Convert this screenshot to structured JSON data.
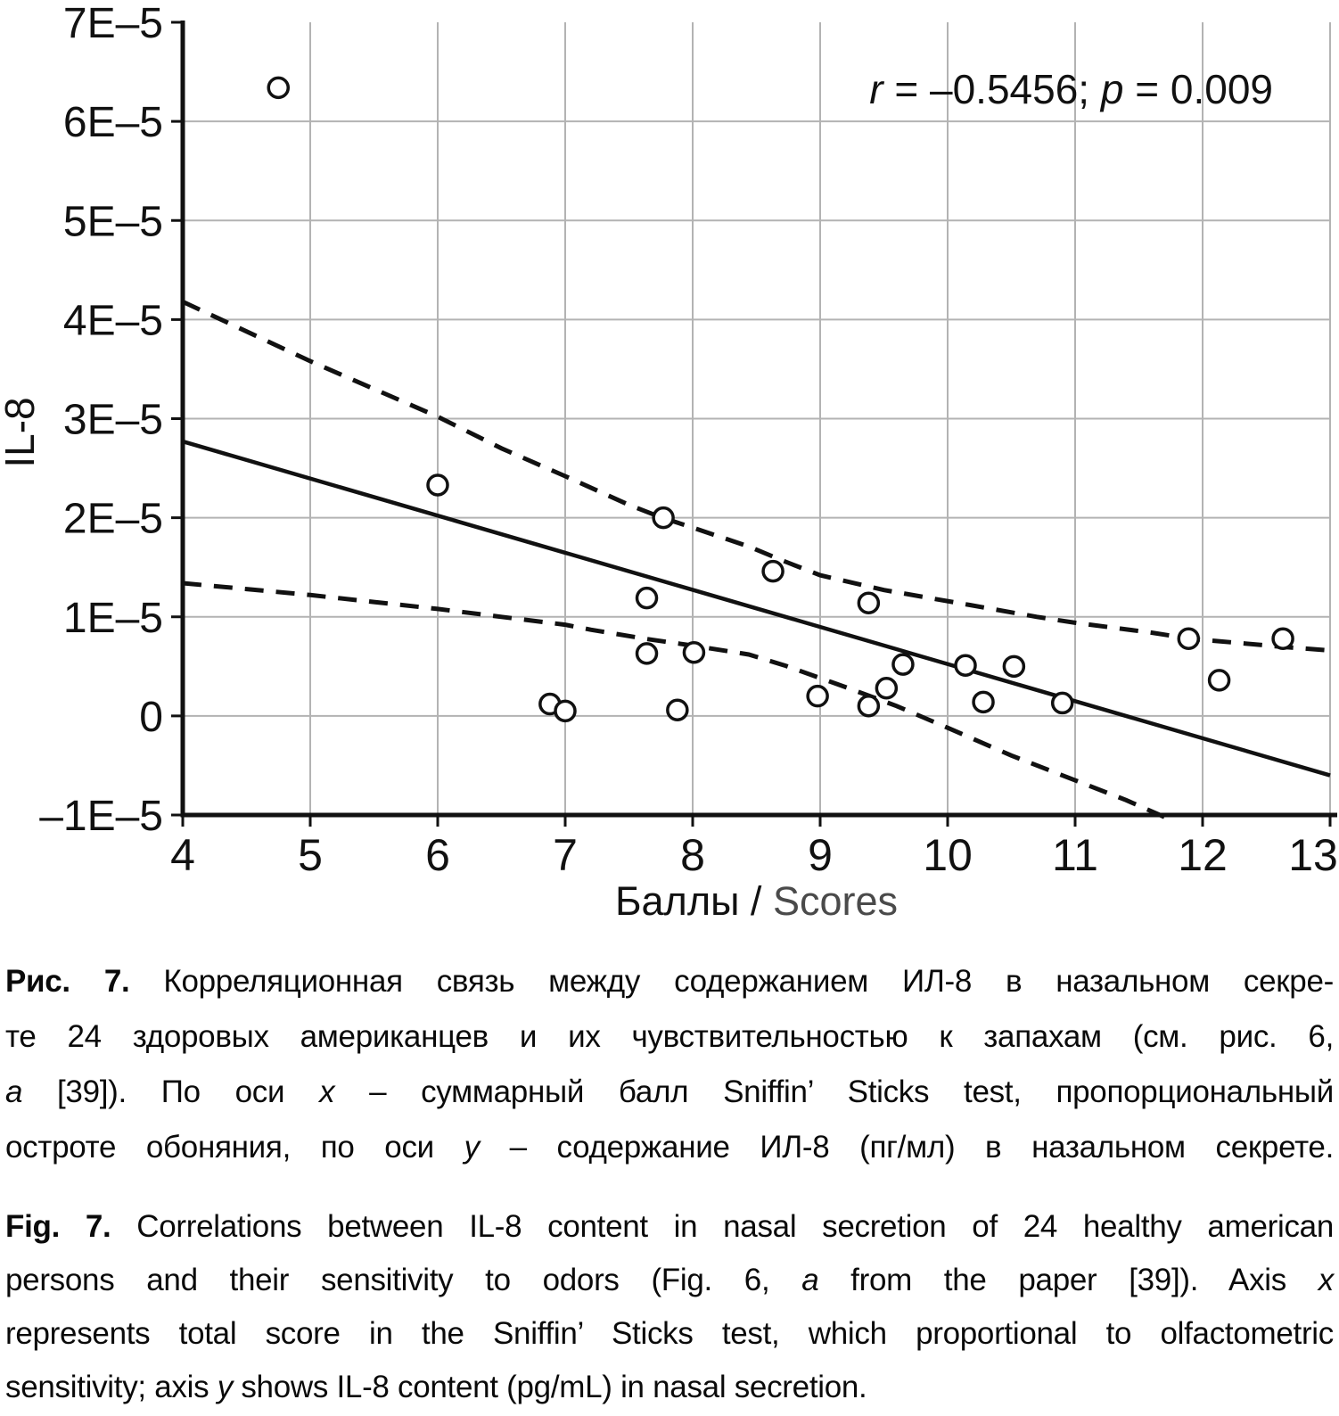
{
  "chart_data": {
    "type": "scatter",
    "title": "",
    "xlabel_segments": [
      {
        "t": "Баллы / ",
        "color": "#111111"
      },
      {
        "t": "Scores",
        "color": "#4a4a4a"
      }
    ],
    "ylabel": "IL-8",
    "xlim": [
      4,
      13
    ],
    "ylim_e5": [
      -1,
      7
    ],
    "x_ticks": [
      4,
      5,
      6,
      7,
      8,
      9,
      10,
      11,
      12,
      13
    ],
    "y_ticks": [
      {
        "value": 7,
        "label": "7E–5"
      },
      {
        "value": 6,
        "label": "6E–5"
      },
      {
        "value": 5,
        "label": "5E–5"
      },
      {
        "value": 4,
        "label": "4E–5"
      },
      {
        "value": 3,
        "label": "3E–5"
      },
      {
        "value": 2,
        "label": "2E–5"
      },
      {
        "value": 1,
        "label": "1E–5"
      },
      {
        "value": 0,
        "label": "0"
      },
      {
        "value": -1,
        "label": "–1E–5"
      }
    ],
    "grid": true,
    "legend": "none",
    "annotation": "r = –0.5456; p = 0.009",
    "annotation_segments": [
      {
        "t": "r",
        "i": true
      },
      {
        "t": " = –0.5456; "
      },
      {
        "t": "p",
        "i": true
      },
      {
        "t": " = 0.009"
      }
    ],
    "correlation_r": -0.5456,
    "p_value": 0.009,
    "points_x_score_y_il8_e5": [
      [
        4.75,
        6.34
      ],
      [
        6.0,
        2.33
      ],
      [
        6.88,
        0.12
      ],
      [
        7.0,
        0.05
      ],
      [
        7.64,
        1.19
      ],
      [
        7.64,
        0.63
      ],
      [
        7.77,
        2.0
      ],
      [
        7.88,
        0.06
      ],
      [
        8.01,
        0.64
      ],
      [
        8.63,
        1.46
      ],
      [
        8.98,
        0.2
      ],
      [
        9.38,
        1.14
      ],
      [
        9.38,
        0.1
      ],
      [
        9.52,
        0.28
      ],
      [
        9.65,
        0.52
      ],
      [
        10.14,
        0.51
      ],
      [
        10.28,
        0.14
      ],
      [
        10.52,
        0.5
      ],
      [
        10.9,
        0.13
      ],
      [
        11.89,
        0.78
      ],
      [
        12.13,
        0.36
      ],
      [
        12.63,
        0.78
      ]
    ],
    "regression_line_e5": [
      [
        4,
        2.77
      ],
      [
        13,
        -0.6
      ]
    ],
    "confidence_band_upper_e5": [
      [
        4,
        4.18
      ],
      [
        4.5,
        3.88
      ],
      [
        5,
        3.58
      ],
      [
        5.5,
        3.3
      ],
      [
        6,
        3.02
      ],
      [
        6.5,
        2.7
      ],
      [
        7,
        2.42
      ],
      [
        7.5,
        2.13
      ],
      [
        7.76,
        2.0
      ],
      [
        8,
        1.9
      ],
      [
        8.44,
        1.71
      ],
      [
        8.72,
        1.56
      ],
      [
        9,
        1.42
      ],
      [
        9.5,
        1.27
      ],
      [
        10.17,
        1.12
      ],
      [
        10.7,
        1.0
      ],
      [
        11,
        0.94
      ],
      [
        11.6,
        0.84
      ],
      [
        11.9,
        0.78
      ],
      [
        12.6,
        0.7
      ],
      [
        13,
        0.66
      ]
    ],
    "confidence_band_lower_e5": [
      [
        4,
        1.34
      ],
      [
        4.5,
        1.28
      ],
      [
        5,
        1.22
      ],
      [
        5.5,
        1.15
      ],
      [
        6,
        1.08
      ],
      [
        6.5,
        1.0
      ],
      [
        7,
        0.92
      ],
      [
        7.2,
        0.87
      ],
      [
        7.62,
        0.78
      ],
      [
        8,
        0.71
      ],
      [
        8.44,
        0.62
      ],
      [
        8.72,
        0.51
      ],
      [
        9.2,
        0.29
      ],
      [
        9.6,
        0.1
      ],
      [
        10,
        -0.12
      ],
      [
        10.5,
        -0.4
      ],
      [
        11,
        -0.65
      ],
      [
        11.4,
        -0.85
      ],
      [
        11.7,
        -1.02
      ]
    ],
    "colors": {
      "line": "#111111",
      "grid": "#b3b3b3",
      "text": "#111111",
      "scores_label": "#4a4a4a",
      "marker_fill": "#ffffff",
      "background": "#ffffff"
    }
  },
  "figure": {
    "caption_ru": {
      "lines": [
        [
          {
            "t": "Рис. 7.",
            "b": true
          },
          {
            "t": " Корреляционная связь между содержанием ИЛ-8 в назальном секре-"
          }
        ],
        [
          {
            "t": "те 24 здоровых американцев и их чувствительностью к запахам (см. рис. 6,"
          }
        ],
        [
          {
            "t": "а",
            "i": true
          },
          {
            "t": " [39]). По оси "
          },
          {
            "t": "x",
            "i": true
          },
          {
            "t": " – суммарный балл Sniffin’ Sticks test, пропорциональный"
          }
        ],
        [
          {
            "t": "остроте обоняния, по оси "
          },
          {
            "t": "y",
            "i": true
          },
          {
            "t": " – содержание ИЛ-8 (пг/мл) в назальном секрете."
          }
        ]
      ]
    },
    "caption_en": {
      "lines": [
        [
          {
            "t": "Fig. 7.",
            "b": true
          },
          {
            "t": " Correlations between IL-8 content in nasal secretion of 24 healthy american"
          }
        ],
        [
          {
            "t": "persons and their sensitivity to odors (Fig. 6, "
          },
          {
            "t": "a",
            "i": true
          },
          {
            "t": " from the paper [39]). Axis "
          },
          {
            "t": "x",
            "i": true
          }
        ],
        [
          {
            "t": "represents total score in the Sniffin’ Sticks test, which proportional to olfactometric"
          }
        ],
        [
          {
            "t": "sensitivity; axis "
          },
          {
            "t": "y",
            "i": true
          },
          {
            "t": " shows IL-8 content (pg/mL) in nasal secretion."
          }
        ]
      ]
    }
  }
}
